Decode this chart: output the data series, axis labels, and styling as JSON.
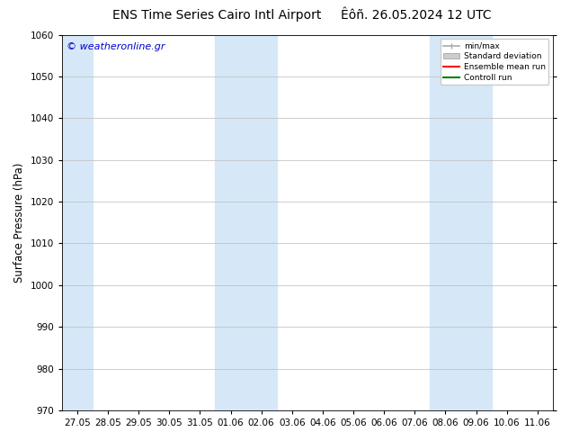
{
  "title_left": "ENS Time Series Cairo Intl Airport",
  "title_right": "Êôñ. 26.05.2024 12 UTC",
  "ylabel": "Surface Pressure (hPa)",
  "ylim": [
    970,
    1060
  ],
  "yticks": [
    970,
    980,
    990,
    1000,
    1010,
    1020,
    1030,
    1040,
    1050,
    1060
  ],
  "xtick_labels": [
    "27.05",
    "28.05",
    "29.05",
    "30.05",
    "31.05",
    "01.06",
    "02.06",
    "03.06",
    "04.06",
    "05.06",
    "06.06",
    "07.06",
    "08.06",
    "09.06",
    "10.06",
    "11.06"
  ],
  "background_color": "#ffffff",
  "plot_bg_color": "#ffffff",
  "shaded_band_color": "#d6e8f7",
  "shaded_column_indices": [
    0,
    5,
    6,
    12,
    13
  ],
  "watermark": "© weatheronline.gr",
  "watermark_color": "#0000cc",
  "legend_entries": [
    "min/max",
    "Standard deviation",
    "Ensemble mean run",
    "Controll run"
  ],
  "legend_colors_line": [
    "#aaaaaa",
    "#cccccc",
    "#ff0000",
    "#008000"
  ],
  "grid_color": "#bbbbbb",
  "tick_color": "#000000",
  "title_fontsize": 10,
  "axis_label_fontsize": 8.5,
  "tick_fontsize": 7.5,
  "watermark_fontsize": 8
}
